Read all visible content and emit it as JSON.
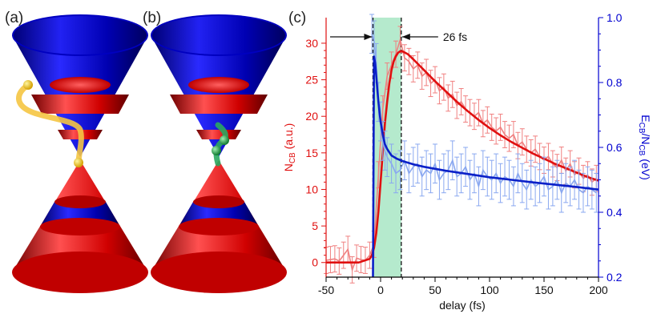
{
  "panels": {
    "a": {
      "label": "(a)",
      "top_band_colors": [
        "#0000c8",
        "#e01010",
        "#0000c8",
        "#e01010",
        "#0000c8"
      ],
      "bottom_band_colors": [
        "#e01010",
        "#0000c8",
        "#e01010"
      ],
      "electron_color": "#f2c200",
      "path_color": "#f5c542"
    },
    "b": {
      "label": "(b)",
      "electron_color": "#1a9a40",
      "path_color": "#2aa860"
    },
    "c": {
      "label": "(c)",
      "arrow_label": "26 fs",
      "shaded_region_color": "#a8e6c4"
    }
  },
  "chart_data": {
    "type": "line",
    "xlabel": "delay (fs)",
    "ylabel_left": "N_CB (a.u.)",
    "ylabel_right": "E_CB/N_CB (eV)",
    "xlim": [
      -50,
      200
    ],
    "ylim_left": [
      -2,
      33.5
    ],
    "ylim_right": [
      0.2,
      1.0
    ],
    "xticks": [
      -50,
      0,
      50,
      100,
      150,
      200
    ],
    "yticks_left": [
      0,
      5,
      10,
      15,
      20,
      25,
      30
    ],
    "yticks_right": [
      0.2,
      0.4,
      0.6,
      0.8,
      1.0
    ],
    "left_axis_color": "#e01010",
    "right_axis_color": "#0000d0",
    "shaded_region": [
      -7,
      19
    ],
    "dashed_lines": [
      -7,
      19
    ],
    "annotation": "26 fs",
    "series": [
      {
        "axis": "left",
        "color": "#f08080",
        "style": "data-with-errorbars",
        "x": [
          -50,
          -46,
          -42,
          -38,
          -34,
          -30,
          -26,
          -22,
          -18,
          -14,
          -10,
          -6,
          -2,
          2,
          6,
          10,
          14,
          18,
          22,
          26,
          30,
          34,
          38,
          42,
          46,
          50,
          54,
          58,
          62,
          66,
          70,
          74,
          78,
          82,
          86,
          90,
          94,
          98,
          102,
          106,
          110,
          114,
          118,
          122,
          126,
          130,
          134,
          138,
          142,
          146,
          150,
          154,
          158,
          162,
          166,
          170,
          174,
          178,
          182,
          186,
          190,
          194,
          198
        ],
        "y": [
          0.3,
          0.4,
          0.5,
          0.2,
          1.0,
          1.8,
          -1.0,
          0.6,
          0.4,
          0.3,
          1.0,
          2.5,
          12.0,
          21.0,
          25.5,
          27.0,
          28.5,
          30.5,
          28.0,
          27.5,
          26.5,
          27.0,
          25.5,
          26.0,
          24.5,
          25.0,
          23.5,
          24.0,
          22.5,
          23.0,
          21.5,
          22.0,
          21.0,
          20.5,
          20.0,
          20.5,
          19.0,
          19.5,
          18.5,
          18.0,
          18.5,
          17.5,
          17.0,
          17.5,
          16.0,
          16.5,
          15.5,
          15.0,
          15.5,
          14.5,
          14.0,
          14.5,
          13.5,
          13.0,
          14.0,
          12.5,
          13.5,
          12.0,
          12.5,
          11.5,
          12.0,
          11.0,
          11.5
        ],
        "err": 1.8
      },
      {
        "axis": "left",
        "color": "#e01010",
        "style": "fit",
        "x": [
          -50,
          -20,
          -10,
          -8,
          -6,
          -4,
          -2,
          0,
          2,
          4,
          6,
          8,
          10,
          12,
          14,
          16,
          18,
          20,
          25,
          30,
          40,
          50,
          60,
          70,
          80,
          90,
          100,
          110,
          120,
          130,
          140,
          150,
          160,
          170,
          180,
          190,
          200
        ],
        "y": [
          0.0,
          0.0,
          0.5,
          1.0,
          2.0,
          4.0,
          7.0,
          11.0,
          15.0,
          19.0,
          22.0,
          24.5,
          26.3,
          27.5,
          28.2,
          28.7,
          28.9,
          28.9,
          28.5,
          27.8,
          26.3,
          24.8,
          23.4,
          22.0,
          20.7,
          19.5,
          18.4,
          17.4,
          16.5,
          15.7,
          14.9,
          14.2,
          13.5,
          12.9,
          12.3,
          11.7,
          11.2
        ]
      },
      {
        "axis": "right",
        "color": "#8aa8f0",
        "style": "data-with-errorbars",
        "x": [
          -8,
          -6,
          -4,
          -2,
          0,
          2,
          4,
          6,
          10,
          14,
          18,
          22,
          26,
          30,
          34,
          38,
          42,
          46,
          50,
          54,
          58,
          62,
          66,
          70,
          74,
          78,
          82,
          86,
          90,
          94,
          98,
          102,
          106,
          110,
          114,
          118,
          122,
          126,
          130,
          134,
          138,
          142,
          146,
          150,
          154,
          158,
          162,
          166,
          170,
          174,
          178,
          182,
          186,
          190,
          194,
          198
        ],
        "y": [
          0.95,
          0.93,
          0.86,
          0.74,
          0.68,
          0.62,
          0.59,
          0.57,
          0.55,
          0.52,
          0.53,
          0.56,
          0.52,
          0.54,
          0.55,
          0.51,
          0.53,
          0.52,
          0.55,
          0.5,
          0.52,
          0.53,
          0.56,
          0.51,
          0.52,
          0.54,
          0.5,
          0.52,
          0.48,
          0.53,
          0.51,
          0.5,
          0.52,
          0.49,
          0.51,
          0.5,
          0.48,
          0.52,
          0.49,
          0.47,
          0.5,
          0.48,
          0.49,
          0.51,
          0.47,
          0.48,
          0.5,
          0.46,
          0.49,
          0.48,
          0.5,
          0.47,
          0.46,
          0.48,
          0.47,
          0.46
        ],
        "err": 0.06
      },
      {
        "axis": "right",
        "color": "#0a20c8",
        "style": "fit",
        "x": [
          -7,
          -6.5,
          -6,
          -5,
          -4,
          -3,
          -2,
          -1,
          0,
          2,
          4,
          6,
          8,
          10,
          15,
          20,
          30,
          40,
          60,
          80,
          100,
          120,
          140,
          160,
          180,
          200
        ],
        "y": [
          0.2,
          0.55,
          0.88,
          0.86,
          0.82,
          0.78,
          0.74,
          0.71,
          0.68,
          0.64,
          0.61,
          0.595,
          0.585,
          0.575,
          0.565,
          0.558,
          0.548,
          0.54,
          0.528,
          0.518,
          0.508,
          0.5,
          0.492,
          0.485,
          0.478,
          0.47
        ]
      }
    ]
  }
}
